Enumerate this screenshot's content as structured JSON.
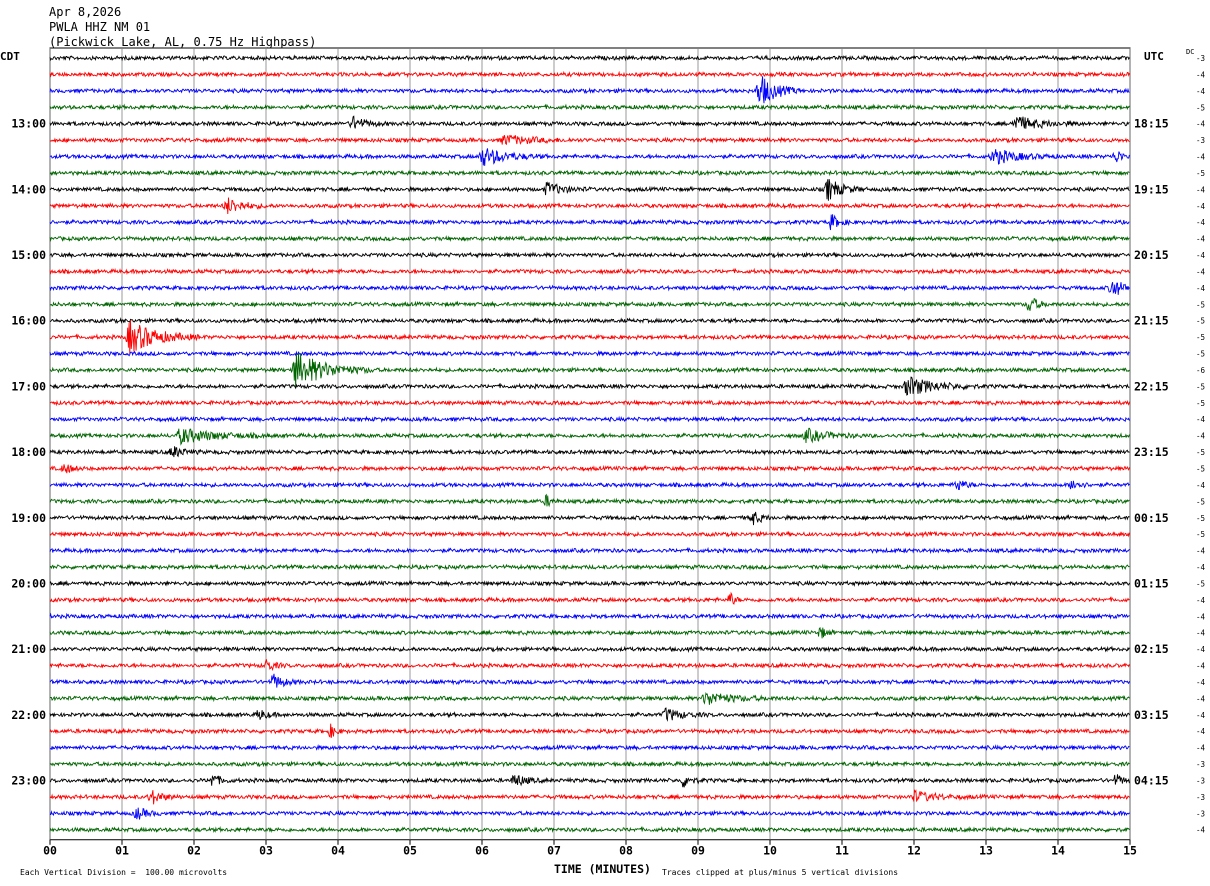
{
  "header": {
    "date": "Apr 8,2026",
    "station": "PWLA HHZ NM 01",
    "location": "(Pickwick Lake, AL, 0.75 Hz Highpass)"
  },
  "labels": {
    "left_zone": "CDT",
    "right_zone": "UTC",
    "dc": "DC",
    "xlabel": "TIME (MINUTES)",
    "scale_note": "Each Vertical Division =  100.00 microvolts",
    "clip_note": "Traces clipped at plus/minus 5 vertical divisions"
  },
  "colors": {
    "cycle": [
      "#000000",
      "#ff0000",
      "#0000ff",
      "#006400"
    ],
    "grid": "#808080"
  },
  "chart_data": {
    "type": "line",
    "title": "PWLA HHZ NM 01",
    "xlabel": "TIME (MINUTES)",
    "xlim": [
      0,
      15
    ],
    "x_ticks": [
      "00",
      "01",
      "02",
      "03",
      "04",
      "05",
      "06",
      "07",
      "08",
      "09",
      "10",
      "11",
      "12",
      "13",
      "14",
      "15"
    ],
    "left_hour_labels": [
      "13:00",
      "14:00",
      "15:00",
      "16:00",
      "17:00",
      "18:00",
      "19:00",
      "20:00",
      "21:00",
      "22:00",
      "23:00"
    ],
    "right_hour_labels": [
      "18:15",
      "19:15",
      "20:15",
      "21:15",
      "22:15",
      "23:15",
      "00:15",
      "01:15",
      "02:15",
      "03:15",
      "04:15"
    ],
    "trace_count": 48,
    "dc_offsets": [
      -3,
      -4,
      -4,
      -5,
      -4,
      -3,
      -4,
      -5,
      -4,
      -4,
      -4,
      -4,
      -4,
      -4,
      -4,
      -5,
      -5,
      -5,
      -5,
      -6,
      -5,
      -5,
      -4,
      -4,
      -5,
      -5,
      -4,
      -5,
      -5,
      -5,
      -4,
      -4,
      -5,
      -4,
      -4,
      -4,
      -4,
      -4,
      -4,
      -4,
      -4,
      -4,
      -4,
      -3,
      -3,
      -3,
      -3,
      -4
    ],
    "events": [
      {
        "trace": 2,
        "minute": 9.85,
        "amp": 4.0,
        "dur": 0.6
      },
      {
        "trace": 4,
        "minute": 4.2,
        "amp": 1.6,
        "dur": 0.5
      },
      {
        "trace": 4,
        "minute": 13.4,
        "amp": 1.8,
        "dur": 0.9
      },
      {
        "trace": 5,
        "minute": 6.3,
        "amp": 1.2,
        "dur": 1.0
      },
      {
        "trace": 6,
        "minute": 6.0,
        "amp": 2.2,
        "dur": 0.9
      },
      {
        "trace": 6,
        "minute": 13.1,
        "amp": 1.8,
        "dur": 0.9
      },
      {
        "trace": 6,
        "minute": 14.8,
        "amp": 1.5,
        "dur": 0.3
      },
      {
        "trace": 8,
        "minute": 6.9,
        "amp": 1.6,
        "dur": 0.6
      },
      {
        "trace": 8,
        "minute": 10.8,
        "amp": 2.8,
        "dur": 0.5
      },
      {
        "trace": 9,
        "minute": 2.45,
        "amp": 2.0,
        "dur": 0.6
      },
      {
        "trace": 10,
        "minute": 10.85,
        "amp": 1.8,
        "dur": 0.3
      },
      {
        "trace": 14,
        "minute": 14.75,
        "amp": 2.4,
        "dur": 0.4
      },
      {
        "trace": 15,
        "minute": 13.6,
        "amp": 2.2,
        "dur": 0.3
      },
      {
        "trace": 17,
        "minute": 1.1,
        "amp": 4.0,
        "dur": 1.0
      },
      {
        "trace": 19,
        "minute": 3.4,
        "amp": 4.5,
        "dur": 1.1
      },
      {
        "trace": 20,
        "minute": 11.9,
        "amp": 2.4,
        "dur": 1.0
      },
      {
        "trace": 23,
        "minute": 1.8,
        "amp": 1.8,
        "dur": 1.3
      },
      {
        "trace": 23,
        "minute": 10.5,
        "amp": 1.5,
        "dur": 0.8
      },
      {
        "trace": 24,
        "minute": 1.7,
        "amp": 1.4,
        "dur": 0.4
      },
      {
        "trace": 25,
        "minute": 0.2,
        "amp": 1.2,
        "dur": 0.3
      },
      {
        "trace": 26,
        "minute": 12.6,
        "amp": 1.4,
        "dur": 0.3
      },
      {
        "trace": 26,
        "minute": 14.2,
        "amp": 1.4,
        "dur": 0.3
      },
      {
        "trace": 27,
        "minute": 6.9,
        "amp": 1.5,
        "dur": 0.15
      },
      {
        "trace": 28,
        "minute": 9.75,
        "amp": 1.8,
        "dur": 0.3
      },
      {
        "trace": 33,
        "minute": 9.45,
        "amp": 1.8,
        "dur": 0.15
      },
      {
        "trace": 35,
        "minute": 10.7,
        "amp": 1.5,
        "dur": 0.2
      },
      {
        "trace": 37,
        "minute": 3.0,
        "amp": 1.5,
        "dur": 0.3
      },
      {
        "trace": 38,
        "minute": 3.1,
        "amp": 1.8,
        "dur": 0.4
      },
      {
        "trace": 39,
        "minute": 9.1,
        "amp": 1.6,
        "dur": 1.0
      },
      {
        "trace": 40,
        "minute": 8.55,
        "amp": 1.5,
        "dur": 0.6
      },
      {
        "trace": 40,
        "minute": 2.9,
        "amp": 1.3,
        "dur": 0.3
      },
      {
        "trace": 41,
        "minute": 3.9,
        "amp": 1.5,
        "dur": 0.2
      },
      {
        "trace": 44,
        "minute": 2.25,
        "amp": 1.6,
        "dur": 0.3
      },
      {
        "trace": 44,
        "minute": 6.45,
        "amp": 1.6,
        "dur": 0.4
      },
      {
        "trace": 44,
        "minute": 8.8,
        "amp": 1.6,
        "dur": 0.3
      },
      {
        "trace": 44,
        "minute": 14.8,
        "amp": 1.4,
        "dur": 0.3
      },
      {
        "trace": 45,
        "minute": 1.4,
        "amp": 1.8,
        "dur": 0.4
      },
      {
        "trace": 45,
        "minute": 12.0,
        "amp": 1.3,
        "dur": 0.8
      },
      {
        "trace": 46,
        "minute": 1.2,
        "amp": 1.4,
        "dur": 0.4
      }
    ]
  }
}
